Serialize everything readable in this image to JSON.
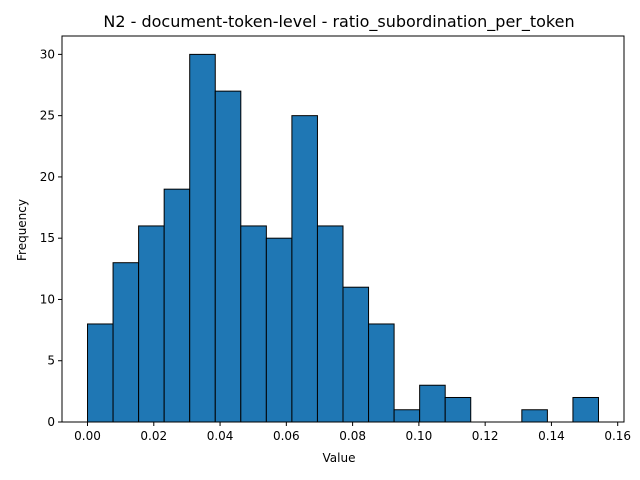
{
  "chart_data": {
    "type": "bar",
    "title": "N2 - document-token-level - ratio_subordination_per_token",
    "xlabel": "Value",
    "ylabel": "Frequency",
    "xlim": [
      -0.0077,
      0.1619
    ],
    "ylim": [
      0,
      31.5
    ],
    "bin_edges": [
      0.0,
      0.00771,
      0.01542,
      0.02313,
      0.03084,
      0.03855,
      0.04626,
      0.05397,
      0.06168,
      0.06939,
      0.0771,
      0.08481,
      0.09252,
      0.10023,
      0.10794,
      0.11565,
      0.12336,
      0.13107,
      0.13878,
      0.14649,
      0.1542
    ],
    "values": [
      8,
      13,
      16,
      19,
      30,
      27,
      16,
      15,
      25,
      16,
      11,
      8,
      1,
      3,
      2,
      0,
      0,
      1,
      0,
      2
    ],
    "x_ticks": [
      0.0,
      0.02,
      0.04,
      0.06,
      0.08,
      0.1,
      0.12,
      0.14,
      0.16
    ],
    "x_tick_labels": [
      "0.00",
      "0.02",
      "0.04",
      "0.06",
      "0.08",
      "0.10",
      "0.12",
      "0.14",
      "0.16"
    ],
    "y_ticks": [
      0,
      5,
      10,
      15,
      20,
      25,
      30
    ],
    "y_tick_labels": [
      "0",
      "5",
      "10",
      "15",
      "20",
      "25",
      "30"
    ],
    "bar_color": "#1f77b4",
    "edge_color": "#000000",
    "grid": false,
    "legend": "none"
  }
}
